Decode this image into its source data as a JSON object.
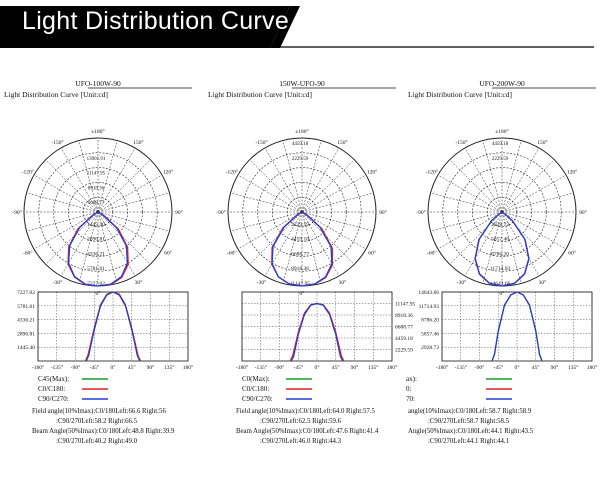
{
  "banner": {
    "title": "Light Distribution Curve",
    "background_color": "#000000",
    "text_color": "#ffffff"
  },
  "polar_ring_labels": [
    [
      "13901.91",
      "11147.95",
      "8918.36",
      "6688.77"
    ],
    [
      "4459.18",
      "2229.59"
    ],
    [
      "4459.18",
      "2229.59"
    ]
  ],
  "chart_data": [
    {
      "type": "polar",
      "model": "UFO-100W-90",
      "subtitle": "Light Distribution Curve [Unit:cd]",
      "angle_labels": [
        "±180°",
        "-150°",
        "150°",
        "-120°",
        "120°",
        "-90°",
        "90°",
        "-60°",
        "60°",
        "-30°",
        "30°",
        "0°"
      ],
      "radial_labels": [
        "7227.02",
        "5781.61",
        "4336.21",
        "2890.81",
        "1445.40"
      ],
      "radial_max": 7227.02,
      "series": [
        {
          "name": "C0/C180",
          "color": "#e02020",
          "angles": [
            -66,
            -60,
            -50,
            -40,
            -30,
            -20,
            -10,
            0,
            10,
            20,
            30,
            40,
            50,
            60,
            66
          ],
          "values": [
            0,
            640,
            2600,
            4500,
            5900,
            6800,
            7200,
            7227,
            7190,
            6750,
            5850,
            4450,
            2550,
            600,
            0
          ]
        },
        {
          "name": "C90/C270",
          "color": "#1f3fd8",
          "angles": [
            -64,
            -60,
            -50,
            -40,
            -30,
            -20,
            -10,
            0,
            10,
            20,
            30,
            40,
            50,
            60,
            64
          ],
          "values": [
            0,
            420,
            2350,
            4300,
            5750,
            6700,
            7150,
            7227,
            7150,
            6700,
            5750,
            4300,
            2350,
            420,
            0
          ]
        }
      ]
    },
    {
      "type": "polar",
      "model": "150W-UFO-90",
      "subtitle": "Light Distribution Curve [Unit:cd]",
      "angle_labels": [
        "±180°",
        "-150°",
        "150°",
        "-120°",
        "120°",
        "-90°",
        "90°",
        "-60°",
        "60°",
        "-30°",
        "30°",
        "0°"
      ],
      "radial_labels": [
        "11147.95",
        "8918.36",
        "6688.77",
        "4459.18",
        "2229.59"
      ],
      "radial_max": 11147.95,
      "series": [
        {
          "name": "C0/C180",
          "color": "#e02020",
          "angles": [
            -64,
            -60,
            -50,
            -40,
            -30,
            -20,
            -10,
            0,
            10,
            20,
            30,
            40,
            50,
            60,
            64
          ],
          "values": [
            0,
            900,
            3900,
            7100,
            9200,
            10500,
            11050,
            11147,
            11000,
            10400,
            9100,
            7000,
            3800,
            850,
            0
          ]
        },
        {
          "name": "C90/C270",
          "color": "#1f3fd8",
          "angles": [
            -62,
            -60,
            -50,
            -40,
            -30,
            -20,
            -10,
            0,
            10,
            20,
            30,
            40,
            50,
            60,
            62
          ],
          "values": [
            0,
            600,
            3500,
            6800,
            9000,
            10400,
            11000,
            11147,
            11000,
            10400,
            9000,
            6800,
            3500,
            600,
            0
          ]
        }
      ]
    },
    {
      "type": "polar",
      "model": "UFO-200W-90",
      "subtitle": "Light Distribution Curve [Unit:cd]",
      "angle_labels": [
        "±180°",
        "-150°",
        "150°",
        "-120°",
        "120°",
        "-90°",
        "90°",
        "-60°",
        "60°",
        "-30°",
        "30°",
        "0°"
      ],
      "radial_labels": [
        "14643.66",
        "11714.93",
        "8786.20",
        "5857.46",
        "2928.73"
      ],
      "radial_max": 14643.66,
      "series": [
        {
          "name": "C0/C180",
          "color": "#e02020",
          "angles": [
            -60,
            -55,
            -50,
            -40,
            -30,
            -20,
            -10,
            0,
            10,
            20,
            30,
            40,
            50,
            55,
            60
          ],
          "values": [
            0,
            700,
            2600,
            7000,
            10600,
            13000,
            14300,
            14643,
            14300,
            13000,
            10600,
            7000,
            2600,
            700,
            0
          ]
        },
        {
          "name": "C90/C270",
          "color": "#1f3fd8",
          "angles": [
            -60,
            -55,
            -50,
            -40,
            -30,
            -20,
            -10,
            0,
            10,
            20,
            30,
            40,
            50,
            55,
            60
          ],
          "values": [
            0,
            750,
            2700,
            7100,
            10700,
            13100,
            14350,
            14643,
            14350,
            13100,
            10700,
            7100,
            2700,
            750,
            0
          ]
        }
      ]
    },
    {
      "type": "line",
      "x_tick_labels": [
        "-180°",
        "-135°",
        "-90°",
        "-45°",
        "0°",
        "45°",
        "90°",
        "135°",
        "180°"
      ],
      "x_ticks": [
        -180,
        -135,
        -90,
        -45,
        0,
        45,
        90,
        135,
        180
      ],
      "xlim": [
        -180,
        180
      ],
      "y_tick_labels": [
        "7227.02",
        "5781.61",
        "4336.21",
        "2890.81",
        "1445.40"
      ],
      "ylim": [
        0,
        7227.02
      ],
      "legend": {
        "labels": [
          "C45(Max):",
          "C0/C180:",
          "C90/C270:"
        ],
        "colors": [
          "#1a9a2a",
          "#e02020",
          "#1f3fd8"
        ]
      },
      "series": [
        {
          "name": "C45(Max)",
          "color": "#1a9a2a",
          "x": [
            -66,
            -60,
            -45,
            -30,
            -15,
            0,
            15,
            30,
            45,
            60,
            66
          ],
          "y": [
            0,
            560,
            3200,
            5900,
            7000,
            7227,
            7000,
            5900,
            3200,
            560,
            0
          ]
        },
        {
          "name": "C0/C180",
          "color": "#e02020",
          "x": [
            -66,
            -60,
            -45,
            -30,
            -15,
            0,
            15,
            30,
            45,
            60,
            66
          ],
          "y": [
            0,
            640,
            3500,
            5900,
            6950,
            7227,
            7000,
            5850,
            3450,
            600,
            0
          ]
        },
        {
          "name": "C90/C270",
          "color": "#1f3fd8",
          "x": [
            -64,
            -58,
            -45,
            -30,
            -15,
            0,
            15,
            30,
            45,
            58,
            64
          ],
          "y": [
            0,
            600,
            3300,
            5750,
            6900,
            7227,
            6900,
            5750,
            3300,
            600,
            0
          ]
        }
      ],
      "notes": [
        "Field angle(10%Imax):C0/180Left:66.6 Right:56",
        ":C90/270Left:58.2 Right:66.5",
        "Beam Angle(50%Imax):C0/180Left:48.8 Right:39.9",
        ":C90/270Left:40.2 Right:49.0"
      ]
    },
    {
      "type": "line",
      "x_tick_labels": [
        "-180°",
        "-135°",
        "-90°",
        "-45°",
        "0°",
        "45°",
        "90°",
        "135°",
        "180°"
      ],
      "x_ticks": [
        -180,
        -135,
        -90,
        -45,
        0,
        45,
        90,
        135,
        180
      ],
      "xlim": [
        -180,
        180
      ],
      "y_tick_labels": [
        "11147.95",
        "8918.36",
        "6688.77",
        "4459.18",
        "2229.59"
      ],
      "ylim": [
        0,
        13377.54
      ],
      "legend": {
        "labels": [
          "C0(Max):",
          "C0/C180:",
          "C90/C270:"
        ],
        "colors": [
          "#1a9a2a",
          "#e02020",
          "#1f3fd8"
        ]
      },
      "series": [
        {
          "name": "C0(Max)",
          "color": "#1a9a2a",
          "x": [
            -64,
            -58,
            -45,
            -30,
            -15,
            0,
            15,
            30,
            45,
            58,
            64
          ],
          "y": [
            0,
            1000,
            5400,
            9300,
            10900,
            11147,
            10900,
            9300,
            5400,
            1000,
            0
          ]
        },
        {
          "name": "C0/C180",
          "color": "#e02020",
          "x": [
            -64,
            -58,
            -45,
            -30,
            -15,
            0,
            15,
            30,
            45,
            58,
            64
          ],
          "y": [
            0,
            1100,
            5600,
            9300,
            10900,
            11147,
            10900,
            9300,
            5600,
            1100,
            0
          ]
        },
        {
          "name": "C90/C270",
          "color": "#1f3fd8",
          "x": [
            -62,
            -56,
            -45,
            -30,
            -15,
            0,
            15,
            30,
            45,
            56,
            62
          ],
          "y": [
            0,
            900,
            5100,
            9000,
            10800,
            11147,
            10800,
            9000,
            5100,
            900,
            0
          ]
        }
      ],
      "notes": [
        "Field angle(10%Imax):C0/180Left:64.0 Right:57.5",
        ":C90/270Left:62.5 Right:59.6",
        "Beam Angle(50%Imax):C0/180Left:47.6 Right:41.4",
        ":C90/270Left:46.0 Right:44.3"
      ]
    },
    {
      "type": "line",
      "x_tick_labels": [
        "-180°",
        "-135°",
        "-90°",
        "-45°",
        "0°",
        "45°",
        "90°",
        "135°",
        "180°"
      ],
      "x_ticks": [
        -180,
        -135,
        -90,
        -45,
        0,
        45,
        90,
        135,
        180
      ],
      "xlim": [
        -180,
        180
      ],
      "y_tick_labels": [
        "14643.66",
        "11714.93",
        "8786.20",
        "5857.46",
        "2928.73"
      ],
      "ylim": [
        0,
        14643.66
      ],
      "legend": {
        "labels": [
          "ax):",
          "0:",
          "70:"
        ],
        "colors": [
          "#1a9a2a",
          "#e02020",
          "#1f3fd8"
        ]
      },
      "series": [
        {
          "name": "ax)",
          "color": "#1a9a2a",
          "x": [
            -60,
            -54,
            -45,
            -30,
            -15,
            0,
            15,
            30,
            45,
            54,
            60
          ],
          "y": [
            0,
            1400,
            6300,
            11800,
            14000,
            14643,
            14000,
            11800,
            6300,
            1400,
            0
          ]
        },
        {
          "name": "0",
          "color": "#e02020",
          "x": [
            -60,
            -54,
            -45,
            -30,
            -15,
            0,
            15,
            30,
            45,
            54,
            60
          ],
          "y": [
            0,
            1500,
            6400,
            11800,
            14000,
            14643,
            14000,
            11800,
            6400,
            1500,
            0
          ]
        },
        {
          "name": "70",
          "color": "#1f3fd8",
          "x": [
            -60,
            -54,
            -45,
            -30,
            -15,
            0,
            15,
            30,
            45,
            54,
            60
          ],
          "y": [
            0,
            1450,
            6350,
            11900,
            14050,
            14643,
            14050,
            11900,
            6350,
            1450,
            0
          ]
        }
      ],
      "notes": [
        "angle(10%Imax):C0/180Left:58.7 Right:58.9",
        ":C90/270Left:58.7 Right:58.5",
        "Angle(50%Imax):C0/180Left:44.1 Right:43.5",
        ":C90/270Left:44.1 Right:44.1"
      ]
    }
  ]
}
